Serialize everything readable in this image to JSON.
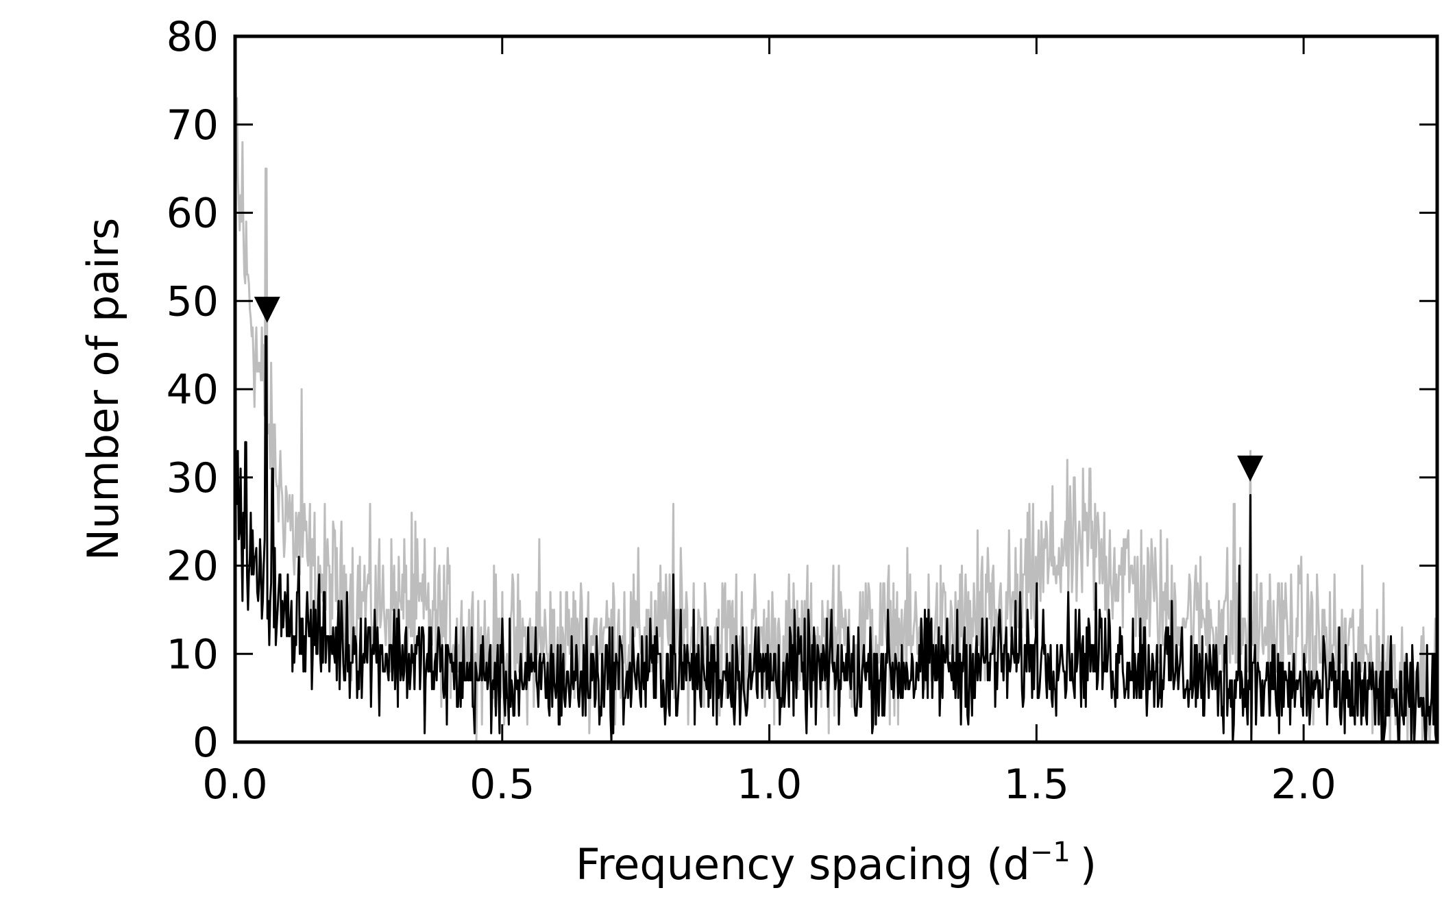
{
  "chart_data": {
    "type": "line",
    "title": "",
    "xlabel_main": "Frequency spacing (d",
    "xlabel_sup": "−1",
    "xlabel_close": ")",
    "ylabel": "Number of pairs",
    "xlim": [
      0.0,
      2.25
    ],
    "ylim": [
      0,
      80
    ],
    "xticks": [
      "0.0",
      "0.5",
      "1.0",
      "1.5",
      "2.0"
    ],
    "yticks": [
      "0",
      "10",
      "20",
      "30",
      "40",
      "50",
      "60",
      "70",
      "80"
    ],
    "grid": false,
    "legend": "none",
    "series": [
      {
        "color": "#bdbdbd",
        "trend_x": [
          0.0,
          0.01,
          0.02,
          0.04,
          0.06,
          0.08,
          0.1,
          0.12,
          0.15,
          0.2,
          0.25,
          0.3,
          0.35,
          0.4,
          0.45,
          0.5,
          0.6,
          0.7,
          0.8,
          0.9,
          1.0,
          1.1,
          1.2,
          1.3,
          1.4,
          1.45,
          1.5,
          1.55,
          1.6,
          1.65,
          1.7,
          1.75,
          1.8,
          1.85,
          1.9,
          2.0,
          2.1,
          2.2,
          2.25
        ],
        "trend_y": [
          62,
          60,
          54,
          44,
          36,
          30,
          26,
          22,
          19,
          17,
          16,
          15.5,
          15,
          13,
          11,
          10.5,
          11,
          12,
          12.5,
          12,
          11,
          11,
          12,
          12,
          13,
          15,
          19,
          22,
          22,
          20,
          17,
          15,
          14,
          13.5,
          13,
          12,
          10,
          7,
          6
        ],
        "noise": 4,
        "spikes": [
          [
            0.004,
            73
          ],
          [
            0.014,
            68
          ],
          [
            0.05,
            47
          ],
          [
            0.058,
            65
          ],
          [
            0.125,
            40
          ],
          [
            0.33,
            26
          ],
          [
            0.57,
            23
          ],
          [
            0.82,
            27
          ],
          [
            1.12,
            20
          ],
          [
            1.39,
            24
          ],
          [
            1.6,
            31
          ],
          [
            1.87,
            27
          ],
          [
            1.9,
            33
          ]
        ]
      },
      {
        "color": "#000000",
        "trend_x": [
          0.0,
          0.02,
          0.04,
          0.06,
          0.08,
          0.1,
          0.12,
          0.15,
          0.2,
          0.3,
          0.4,
          0.5,
          0.6,
          0.8,
          1.0,
          1.2,
          1.4,
          1.5,
          1.6,
          1.7,
          1.8,
          1.9,
          2.0,
          2.1,
          2.2,
          2.25
        ],
        "trend_y": [
          26,
          22,
          19,
          17,
          15,
          14,
          13,
          12,
          11,
          10,
          8,
          7,
          7,
          8,
          8,
          8,
          9,
          10,
          10,
          9,
          7.5,
          6.5,
          6,
          5.5,
          4,
          4
        ],
        "noise": 3,
        "spikes": [
          [
            0.005,
            33
          ],
          [
            0.02,
            34
          ],
          [
            0.058,
            46
          ],
          [
            0.07,
            31
          ],
          [
            0.12,
            21
          ],
          [
            0.82,
            19
          ],
          [
            1.5,
            18
          ],
          [
            1.88,
            20
          ],
          [
            1.9,
            28
          ]
        ]
      }
    ],
    "markers": [
      {
        "x": 0.06,
        "y": 49,
        "shape": "down-triangle"
      },
      {
        "x": 1.9,
        "y": 31,
        "shape": "down-triangle"
      }
    ]
  }
}
